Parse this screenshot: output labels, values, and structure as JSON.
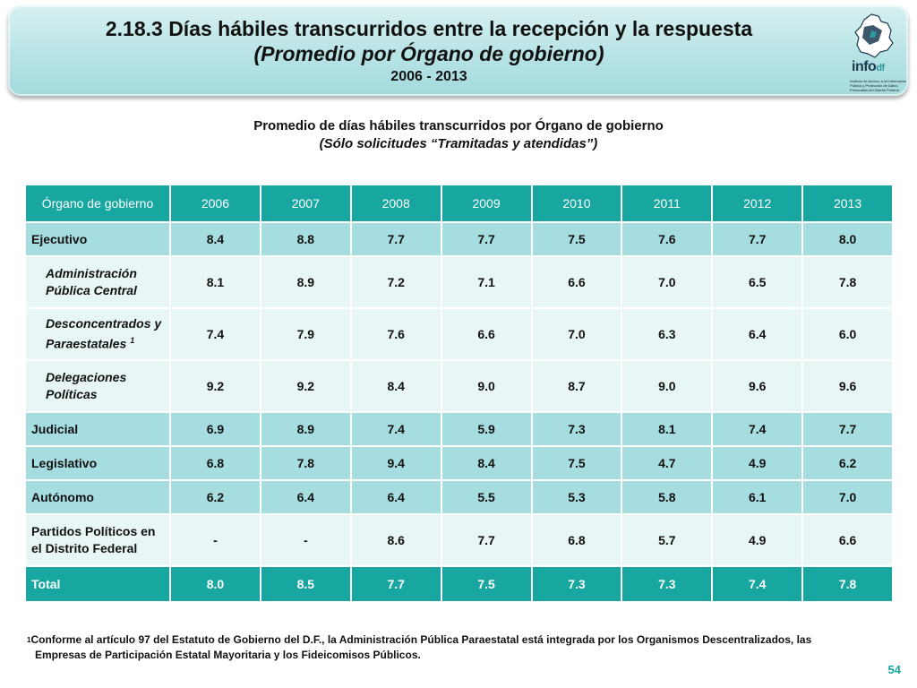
{
  "banner": {
    "title": "2.18.3 Días hábiles transcurridos entre la recepción y la respuesta",
    "subtitle": "(Promedio por Órgano de gobierno)",
    "years": "2006 - 2013"
  },
  "logo": {
    "word": "info",
    "suffix": "df",
    "caption": "Instituto de Acceso a la Información Pública y Protección de Datos Personales del Distrito Federal",
    "icon": "mexico-city-map-icon"
  },
  "table_caption": {
    "title": "Promedio de días hábiles transcurridos por Órgano de gobierno",
    "subtitle": "(Sólo solicitudes “Tramitadas y atendidas”)"
  },
  "table": {
    "headers": [
      "Órgano de gobierno",
      "2006",
      "2007",
      "2008",
      "2009",
      "2010",
      "2011",
      "2012",
      "2013"
    ],
    "rows": [
      {
        "label": "Ejecutivo",
        "values": [
          "8.4",
          "8.8",
          "7.7",
          "7.7",
          "7.5",
          "7.6",
          "7.7",
          "8.0"
        ]
      },
      {
        "label": "Administración Pública Central",
        "values": [
          "8.1",
          "8.9",
          "7.2",
          "7.1",
          "6.6",
          "7.0",
          "6.5",
          "7.8"
        ]
      },
      {
        "label": "Desconcentrados y Paraestatales",
        "sup": "1",
        "values": [
          "7.4",
          "7.9",
          "7.6",
          "6.6",
          "7.0",
          "6.3",
          "6.4",
          "6.0"
        ]
      },
      {
        "label": "Delegaciones Políticas",
        "values": [
          "9.2",
          "9.2",
          "8.4",
          "9.0",
          "8.7",
          "9.0",
          "9.6",
          "9.6"
        ]
      },
      {
        "label": "Judicial",
        "values": [
          "6.9",
          "8.9",
          "7.4",
          "5.9",
          "7.3",
          "8.1",
          "7.4",
          "7.7"
        ]
      },
      {
        "label": "Legislativo",
        "values": [
          "6.8",
          "7.8",
          "9.4",
          "8.4",
          "7.5",
          "4.7",
          "4.9",
          "6.2"
        ]
      },
      {
        "label": "Autónomo",
        "values": [
          "6.2",
          "6.4",
          "6.4",
          "5.5",
          "5.3",
          "5.8",
          "6.1",
          "7.0"
        ]
      },
      {
        "label": "Partidos Políticos en el Distrito Federal",
        "values": [
          "-",
          "-",
          "8.6",
          "7.7",
          "6.8",
          "5.7",
          "4.9",
          "6.6"
        ]
      }
    ],
    "total": {
      "label": "Total",
      "values": [
        "8.0",
        "8.5",
        "7.7",
        "7.5",
        "7.3",
        "7.3",
        "7.4",
        "7.8"
      ]
    }
  },
  "footnote": {
    "mark": "1",
    "line1": "Conforme al artículo 97 del Estatuto de Gobierno del D.F., la Administración Pública Paraestatal está integrada por los Organismos Descentralizados, las",
    "line2": "Empresas de Participación Estatal Mayoritaria y los Fideicomisos Públicos."
  },
  "page_number": "54",
  "colors": {
    "header_teal": "#17a7a0",
    "main_row": "#a5dde0",
    "sub_row": "#e9f6f6",
    "banner": "#b7e3e5"
  }
}
